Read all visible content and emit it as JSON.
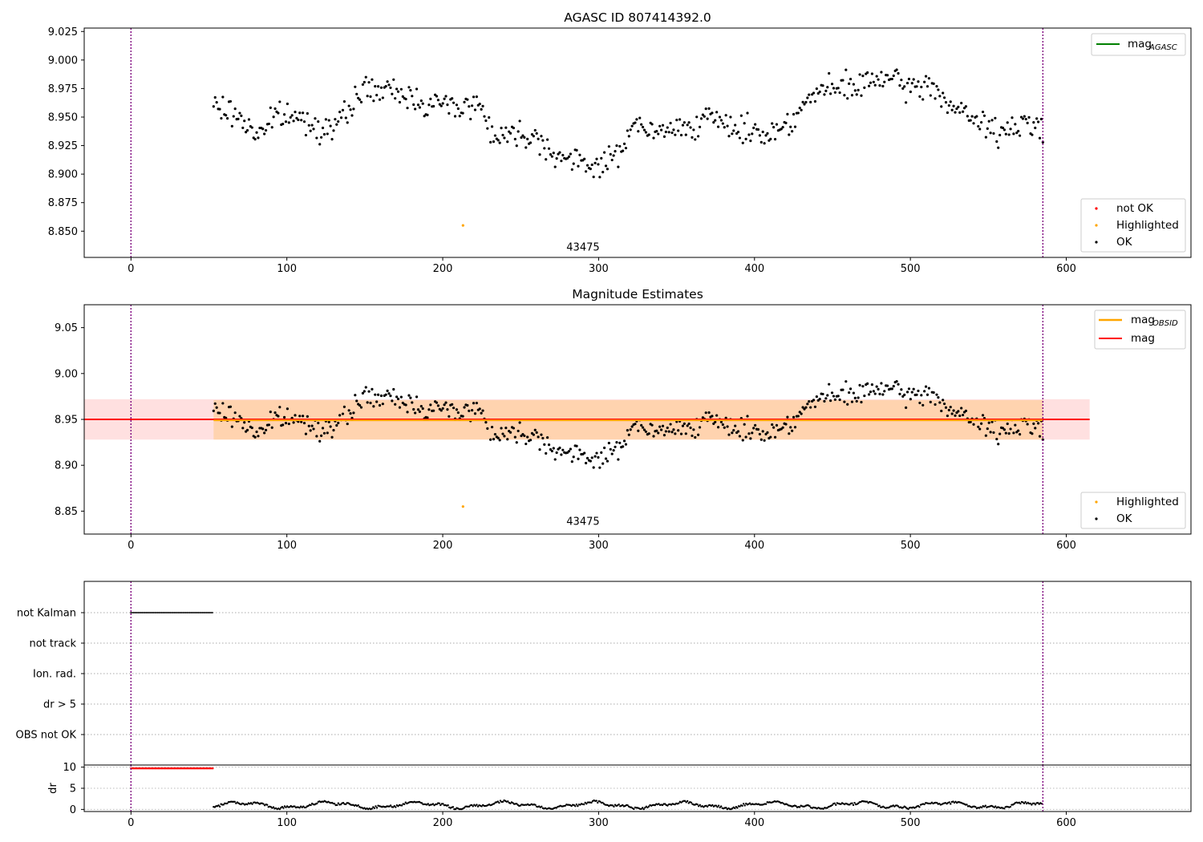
{
  "chart_data": [
    {
      "type": "scatter",
      "title": "AGASC ID 807414392.0",
      "xlim": [
        -30,
        680
      ],
      "ylim": [
        8.827,
        9.028
      ],
      "x_ticks": [
        "0",
        "100",
        "200",
        "300",
        "400",
        "500",
        "600"
      ],
      "y_ticks": [
        "8.850",
        "8.875",
        "8.900",
        "8.925",
        "8.950",
        "8.975",
        "9.000",
        "9.025"
      ],
      "obsid_label": "43475",
      "obsid_label_position": [
        290,
        8.833
      ],
      "vlines": [
        0,
        585
      ],
      "legend_top": [
        {
          "label": "mag",
          "subscript": "AGASC",
          "color": "#008000"
        }
      ],
      "legend_bottom": [
        {
          "label": "not OK",
          "color": "#ff0000"
        },
        {
          "label": "Highlighted",
          "color": "#ffa500"
        },
        {
          "label": "OK",
          "color": "#000000"
        }
      ],
      "highlighted_point": [
        213,
        8.855
      ],
      "ok_points": {
        "x_start": 53,
        "x_end": 585,
        "n": 540,
        "seed": 7,
        "trend": [
          [
            53,
            8.96
          ],
          [
            70,
            8.95
          ],
          [
            80,
            8.935
          ],
          [
            95,
            8.952
          ],
          [
            110,
            8.948
          ],
          [
            125,
            8.94
          ],
          [
            135,
            8.945
          ],
          [
            148,
            8.975
          ],
          [
            165,
            8.972
          ],
          [
            175,
            8.97
          ],
          [
            190,
            8.962
          ],
          [
            210,
            8.96
          ],
          [
            225,
            8.96
          ],
          [
            232,
            8.935
          ],
          [
            245,
            8.935
          ],
          [
            258,
            8.935
          ],
          [
            275,
            8.915
          ],
          [
            290,
            8.908
          ],
          [
            305,
            8.91
          ],
          [
            315,
            8.92
          ],
          [
            320,
            8.945
          ],
          [
            335,
            8.935
          ],
          [
            350,
            8.94
          ],
          [
            370,
            8.948
          ],
          [
            390,
            8.94
          ],
          [
            410,
            8.935
          ],
          [
            425,
            8.95
          ],
          [
            440,
            8.972
          ],
          [
            455,
            8.975
          ],
          [
            470,
            8.978
          ],
          [
            480,
            8.985
          ],
          [
            500,
            8.975
          ],
          [
            515,
            8.978
          ],
          [
            525,
            8.96
          ],
          [
            540,
            8.948
          ],
          [
            560,
            8.935
          ],
          [
            575,
            8.945
          ],
          [
            585,
            8.942
          ]
        ],
        "noise": 0.014
      }
    },
    {
      "type": "scatter",
      "title": "Magnitude Estimates",
      "xlim": [
        -30,
        680
      ],
      "ylim": [
        8.825,
        9.075
      ],
      "x_ticks": [
        "0",
        "100",
        "200",
        "300",
        "400",
        "500",
        "600"
      ],
      "y_ticks": [
        "8.85",
        "8.90",
        "8.95",
        "9.00",
        "9.05"
      ],
      "obsid_label": "43475",
      "obsid_label_position": [
        290,
        8.835
      ],
      "vlines": [
        0,
        585
      ],
      "mag": 8.95,
      "mag_obsid": 8.949,
      "mag_band": [
        8.928,
        8.972
      ],
      "mag_obsid_band": [
        8.928,
        8.971
      ],
      "band_xrange": [
        -30,
        615
      ],
      "obsid_band_xrange": [
        53,
        585
      ],
      "legend_top": [
        {
          "label": "mag",
          "subscript": "OBSID",
          "color": "#ffa500"
        },
        {
          "label": "mag",
          "subscript": "",
          "color": "#ff0000"
        }
      ],
      "legend_bottom": [
        {
          "label": "Highlighted",
          "color": "#ffa500"
        },
        {
          "label": "OK",
          "color": "#000000"
        }
      ],
      "highlighted_point": [
        213,
        8.855
      ]
    },
    {
      "type": "scatter",
      "xlim": [
        -30,
        680
      ],
      "flag_rows": [
        "not Kalman",
        "not track",
        "Ion. rad.",
        "dr > 5",
        "OBS not OK"
      ],
      "not_kalman_range": [
        0,
        53
      ],
      "dr_panel": {
        "ylabel": "dr",
        "y_ticks": [
          "0",
          "5",
          "10"
        ],
        "ylim": [
          -0.5,
          10.5
        ],
        "red_range": [
          0,
          53
        ],
        "red_value": 9.7,
        "black_range": [
          53,
          585
        ]
      },
      "x_ticks": [
        "0",
        "100",
        "200",
        "300",
        "400",
        "500",
        "600"
      ],
      "vlines": [
        0,
        585
      ]
    }
  ]
}
